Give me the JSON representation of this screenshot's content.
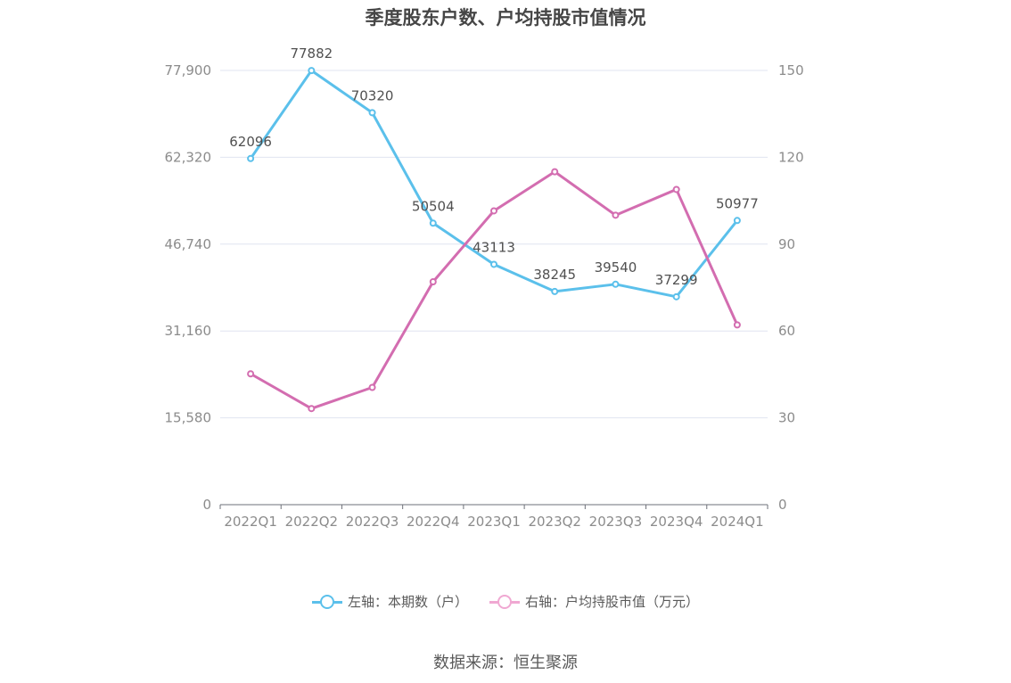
{
  "chart_data": {
    "type": "line",
    "title": "季度股东户数、户均持股市值情况",
    "categories": [
      "2022Q1",
      "2022Q2",
      "2022Q3",
      "2022Q4",
      "2023Q1",
      "2023Q2",
      "2023Q3",
      "2023Q4",
      "2024Q1"
    ],
    "y_left": {
      "ticks": [
        "0",
        "15,580",
        "31,160",
        "46,740",
        "62,320",
        "77,900"
      ],
      "ylim": [
        0,
        77900
      ]
    },
    "y_right": {
      "ticks": [
        "0",
        "30",
        "60",
        "90",
        "120",
        "150"
      ],
      "ylim": [
        0,
        150
      ]
    },
    "series": [
      {
        "name": "左轴：本期数（户）",
        "axis": "left",
        "color": "#5bc0eb",
        "values": [
          62096,
          77882,
          70320,
          50504,
          43113,
          38245,
          39540,
          37299,
          50977
        ],
        "labels": [
          "62096",
          "77882",
          "70320",
          "50504",
          "43113",
          "38245",
          "39540",
          "37299",
          "50977"
        ]
      },
      {
        "name": "右轴：户均持股市值（万元）",
        "axis": "right",
        "color": "#d36db0",
        "values": [
          45.2,
          33.2,
          40.5,
          77.0,
          101.5,
          115.0,
          100.0,
          108.9,
          62.1
        ]
      }
    ],
    "grid": true,
    "legend_position": "bottom"
  },
  "legend": {
    "left_label": "左轴：本期数（户）",
    "right_label": "右轴：户均持股市值（万元）",
    "left_color": "#5bc0eb",
    "right_color": "#f0a8d2"
  },
  "source": "数据来源：恒生聚源"
}
